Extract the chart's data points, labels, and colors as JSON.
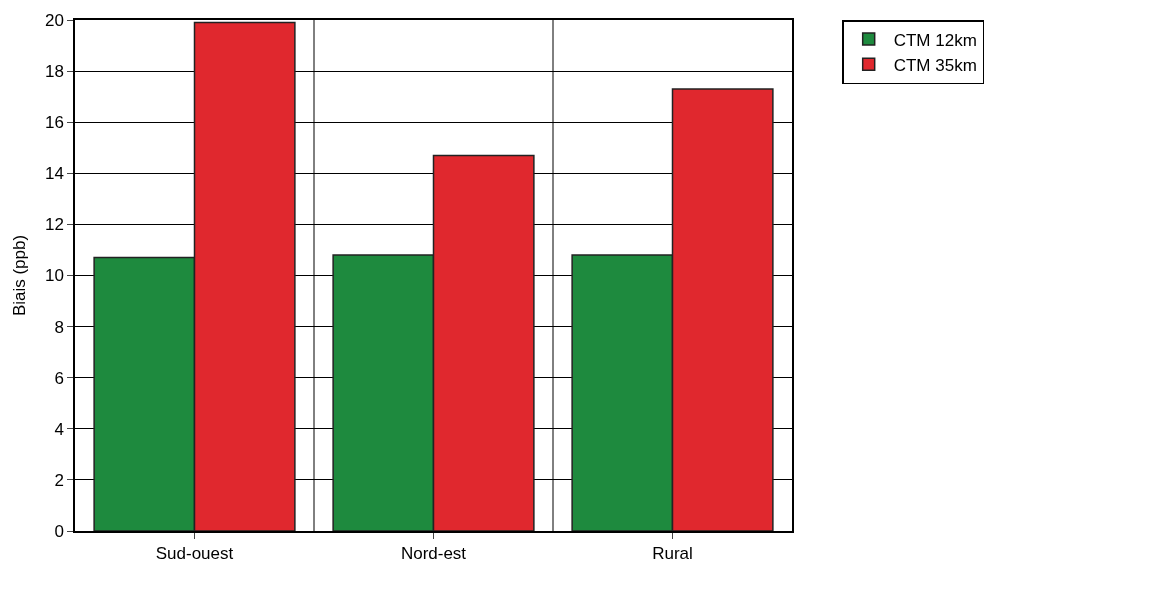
{
  "chart_data": {
    "type": "bar",
    "ylabel": "Biais (ppb)",
    "categories": [
      "Sud-ouest",
      "Nord-est",
      "Rural"
    ],
    "series": [
      {
        "name": "CTM 12km",
        "color": "#1e8a3e",
        "values": [
          10.7,
          10.8,
          10.8
        ]
      },
      {
        "name": "CTM 35km",
        "color": "#e0282e",
        "values": [
          19.9,
          14.7,
          17.3
        ]
      }
    ],
    "ylim": [
      0,
      20
    ],
    "yticks": [
      0,
      2,
      4,
      6,
      8,
      10,
      12,
      14,
      16,
      18,
      20
    ],
    "grid": true,
    "legend": "top right"
  }
}
